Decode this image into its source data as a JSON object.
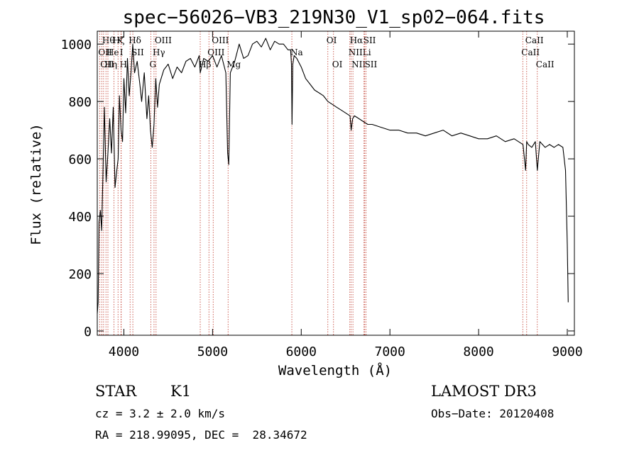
{
  "chart_data": {
    "type": "line",
    "title": "spec−56026−VB3_219N30_V1_sp02−064.fits",
    "xlabel": "Wavelength (Å)",
    "ylabel": "Flux (relative)",
    "xlim": [
      3700,
      9080
    ],
    "ylim": [
      -15,
      1045
    ],
    "x_ticks": [
      4000,
      5000,
      6000,
      7000,
      8000,
      9000
    ],
    "y_ticks": [
      0,
      200,
      400,
      600,
      800,
      1000
    ],
    "series": [
      {
        "name": "flux",
        "x": [
          3700,
          3710,
          3720,
          3735,
          3750,
          3765,
          3780,
          3800,
          3820,
          3840,
          3860,
          3880,
          3900,
          3920,
          3935,
          3950,
          3968,
          3985,
          4000,
          4020,
          4040,
          4060,
          4080,
          4100,
          4120,
          4150,
          4180,
          4200,
          4230,
          4260,
          4280,
          4300,
          4320,
          4340,
          4360,
          4380,
          4400,
          4450,
          4500,
          4550,
          4600,
          4650,
          4700,
          4750,
          4800,
          4850,
          4861,
          4900,
          4950,
          5000,
          5050,
          5100,
          5150,
          5170,
          5183,
          5200,
          5250,
          5300,
          5350,
          5400,
          5450,
          5500,
          5550,
          5600,
          5650,
          5700,
          5750,
          5800,
          5850,
          5880,
          5890,
          5896,
          5905,
          5920,
          5950,
          6000,
          6050,
          6100,
          6150,
          6200,
          6250,
          6300,
          6350,
          6400,
          6450,
          6500,
          6550,
          6563,
          6580,
          6600,
          6650,
          6700,
          6750,
          6800,
          6900,
          7000,
          7100,
          7200,
          7300,
          7400,
          7500,
          7600,
          7700,
          7800,
          7900,
          8000,
          8100,
          8200,
          8300,
          8400,
          8450,
          8500,
          8530,
          8542,
          8560,
          8600,
          8640,
          8662,
          8690,
          8750,
          8800,
          8850,
          8900,
          8950,
          8980,
          9000,
          9010
        ],
        "values": [
          60,
          100,
          380,
          420,
          350,
          560,
          780,
          520,
          620,
          740,
          620,
          780,
          500,
          560,
          600,
          820,
          700,
          660,
          880,
          760,
          950,
          820,
          900,
          1000,
          900,
          940,
          860,
          800,
          900,
          740,
          820,
          700,
          640,
          720,
          880,
          780,
          860,
          910,
          930,
          880,
          920,
          900,
          940,
          950,
          920,
          960,
          900,
          950,
          940,
          960,
          920,
          960,
          900,
          620,
          580,
          900,
          940,
          1000,
          950,
          960,
          1000,
          1010,
          990,
          1020,
          980,
          1010,
          1000,
          1000,
          980,
          980,
          930,
          720,
          930,
          960,
          950,
          920,
          880,
          860,
          840,
          830,
          820,
          800,
          790,
          780,
          770,
          760,
          750,
          700,
          740,
          750,
          740,
          730,
          720,
          720,
          710,
          700,
          700,
          690,
          690,
          680,
          690,
          700,
          680,
          690,
          680,
          670,
          670,
          680,
          660,
          670,
          660,
          650,
          560,
          660,
          650,
          640,
          660,
          560,
          660,
          640,
          650,
          640,
          650,
          640,
          560,
          300,
          100
        ]
      }
    ],
    "line_markers": [
      {
        "wave": 3727,
        "label": "OII",
        "row": 2
      },
      {
        "wave": 3750,
        "label": "OII",
        "row": 3
      },
      {
        "wave": 3771,
        "label": "Hθ",
        "row": 1
      },
      {
        "wave": 3798,
        "label": "Hη",
        "row": 3
      },
      {
        "wave": 3820,
        "label": "He",
        "row": 2
      },
      {
        "wave": 3889,
        "label": "Hζ",
        "row": 1
      },
      {
        "wave": 3934,
        "label": "K",
        "row": 1
      },
      {
        "wave": 3968,
        "label": "H",
        "row": 3
      },
      {
        "wave": 3970,
        "label": "I",
        "row": 2
      },
      {
        "wave": 4070,
        "label": "Hδ",
        "row": 1
      },
      {
        "wave": 4101,
        "label": "SII",
        "row": 2
      },
      {
        "wave": 4304,
        "label": "G",
        "row": 3
      },
      {
        "wave": 4340,
        "label": "Hγ",
        "row": 2
      },
      {
        "wave": 4363,
        "label": "OIII",
        "row": 1
      },
      {
        "wave": 4861,
        "label": "Hβ",
        "row": 3
      },
      {
        "wave": 4959,
        "label": "OIII",
        "row": 2
      },
      {
        "wave": 5007,
        "label": "OIII",
        "row": 1
      },
      {
        "wave": 5175,
        "label": "Mg",
        "row": 3
      },
      {
        "wave": 5894,
        "label": "Na",
        "row": 2
      },
      {
        "wave": 6300,
        "label": "OI",
        "row": 1
      },
      {
        "wave": 6364,
        "label": "OI",
        "row": 3
      },
      {
        "wave": 6548,
        "label": "NII",
        "row": 2
      },
      {
        "wave": 6563,
        "label": "Hα",
        "row": 1
      },
      {
        "wave": 6583,
        "label": "NII",
        "row": 3
      },
      {
        "wave": 6708,
        "label": "Li",
        "row": 2
      },
      {
        "wave": 6716,
        "label": "SII",
        "row": 1
      },
      {
        "wave": 6731,
        "label": "SII",
        "row": 3
      },
      {
        "wave": 8498,
        "label": "CaII",
        "row": 2
      },
      {
        "wave": 8542,
        "label": "CaII",
        "row": 1
      },
      {
        "wave": 8662,
        "label": "CaII",
        "row": 3
      }
    ]
  },
  "info": {
    "class": "STAR",
    "subclass": "K1",
    "cz": "cz = 3.2 ± 2.0 km/s",
    "coords": "RA = 218.99095, DEC =  28.34672",
    "survey": "LAMOST DR3",
    "obs_date": "Obs−Date: 20120408"
  }
}
